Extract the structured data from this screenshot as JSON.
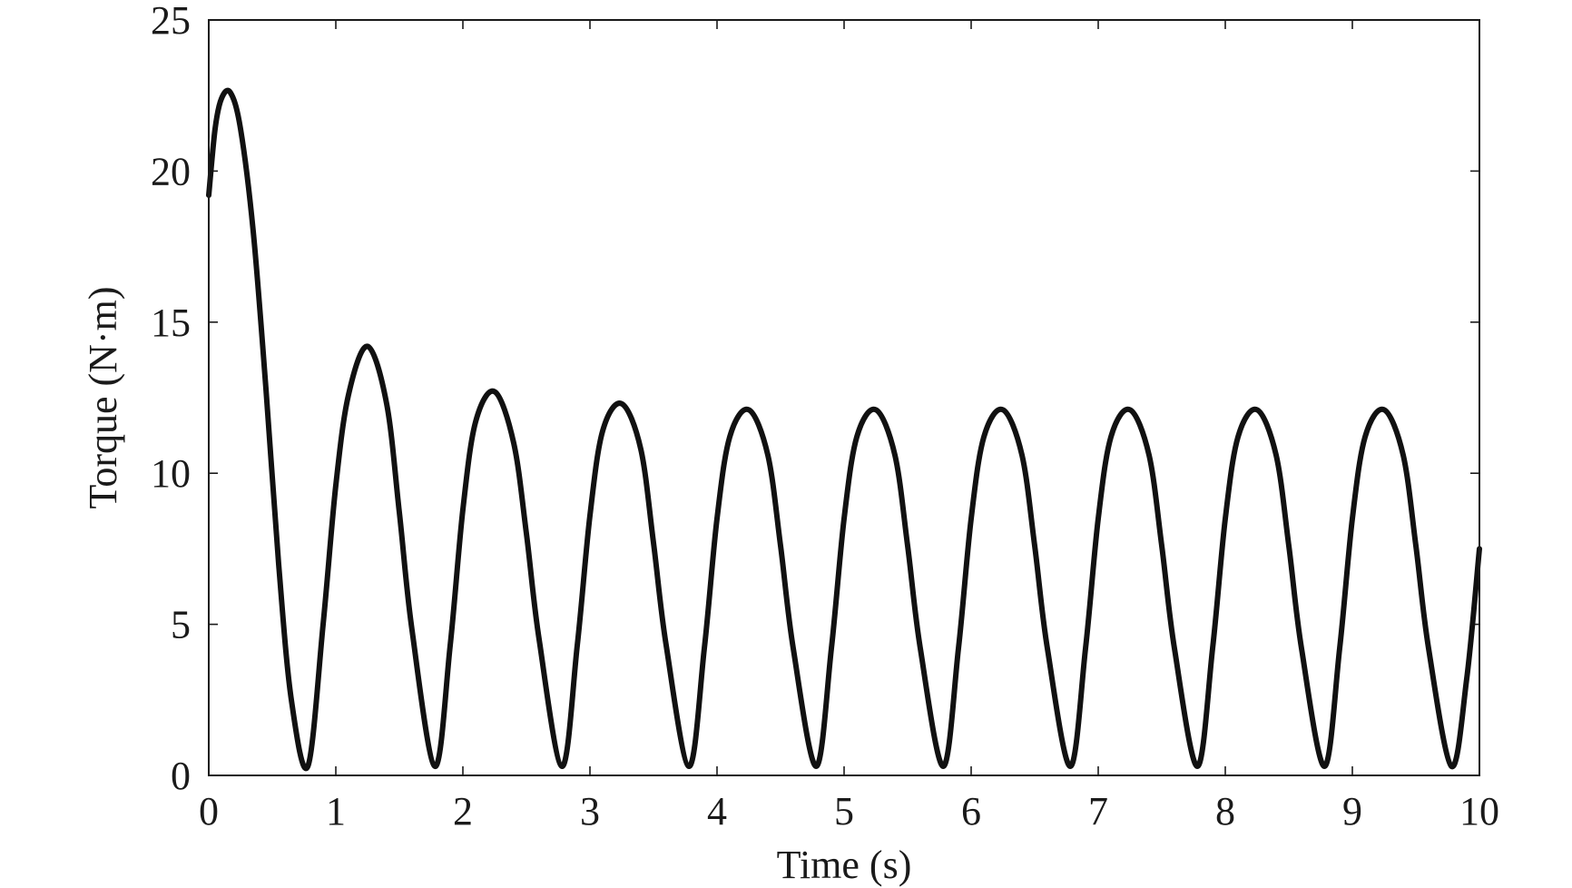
{
  "chart_data": {
    "type": "line",
    "title": "",
    "xlabel": "Time (s)",
    "ylabel": "Torque (N·m)",
    "xlim": [
      0,
      10
    ],
    "ylim": [
      0,
      25
    ],
    "xticks": [
      "0",
      "1",
      "2",
      "3",
      "4",
      "5",
      "6",
      "7",
      "8",
      "9",
      "10"
    ],
    "yticks": [
      "0",
      "5",
      "10",
      "15",
      "20",
      "25"
    ],
    "grid": false,
    "legend": "none",
    "line_color": "#111111",
    "series": [
      {
        "x": [
          0,
          0.05,
          0.1,
          0.17,
          0.25,
          0.35,
          0.45,
          0.55,
          0.65,
          0.78,
          0.9,
          1.0,
          1.1,
          1.25,
          1.4,
          1.5,
          1.6,
          1.78,
          1.9,
          2.0,
          2.1,
          2.25,
          2.4,
          2.5,
          2.6,
          2.78,
          2.9,
          3.0,
          3.1,
          3.25,
          3.4,
          3.5,
          3.6,
          3.78,
          3.9,
          4.0,
          4.1,
          4.25,
          4.4,
          4.5,
          4.6,
          4.78,
          4.9,
          5.0,
          5.1,
          5.25,
          5.4,
          5.5,
          5.6,
          5.78,
          5.9,
          6.0,
          6.1,
          6.25,
          6.4,
          6.5,
          6.6,
          6.78,
          6.9,
          7.0,
          7.1,
          7.25,
          7.4,
          7.5,
          7.6,
          7.78,
          7.9,
          8.0,
          8.1,
          8.25,
          8.4,
          8.5,
          8.6,
          8.78,
          8.9,
          9.0,
          9.1,
          9.25,
          9.4,
          9.5,
          9.6,
          9.78,
          9.9,
          10.0
        ],
        "y": [
          19.2,
          21.4,
          22.4,
          22.6,
          21.4,
          18.0,
          12.8,
          7.0,
          2.5,
          0.3,
          5.0,
          9.6,
          12.6,
          14.2,
          12.3,
          8.7,
          4.8,
          0.3,
          4.3,
          8.8,
          11.7,
          12.7,
          11.0,
          8.0,
          4.5,
          0.3,
          4.3,
          8.6,
          11.4,
          12.3,
          10.8,
          7.7,
          4.3,
          0.3,
          4.2,
          8.5,
          11.2,
          12.1,
          10.6,
          7.6,
          4.2,
          0.3,
          4.2,
          8.5,
          11.2,
          12.1,
          10.6,
          7.6,
          4.2,
          0.3,
          4.2,
          8.5,
          11.2,
          12.1,
          10.6,
          7.6,
          4.2,
          0.3,
          4.2,
          8.5,
          11.2,
          12.1,
          10.6,
          7.6,
          4.2,
          0.3,
          4.2,
          8.5,
          11.2,
          12.1,
          10.6,
          7.6,
          4.2,
          0.3,
          4.2,
          8.5,
          11.2,
          12.1,
          10.6,
          7.6,
          4.2,
          0.3,
          3.2,
          7.5
        ]
      }
    ]
  }
}
